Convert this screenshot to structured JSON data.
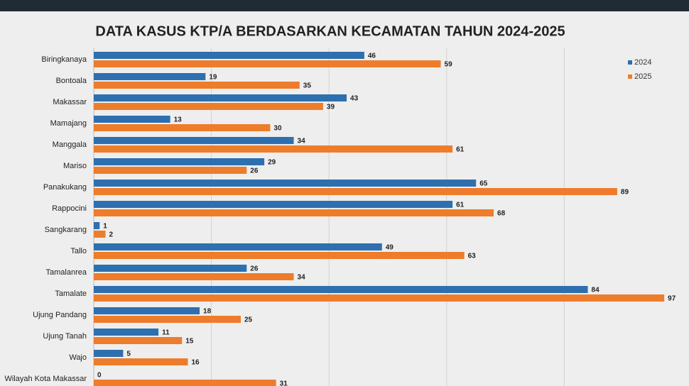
{
  "chart_data": {
    "type": "hbar",
    "title": "DATA KASUS KTP/A BERDASARKAN KECAMATAN TAHUN 2024-2025",
    "categories": [
      "Biringkanaya",
      "Bontoala",
      "Makassar",
      "Mamajang",
      "Manggala",
      "Mariso",
      "Panakukang",
      "Rappocini",
      "Sangkarang",
      "Tallo",
      "Tamalanrea",
      "Tamalate",
      "Ujung Pandang",
      "Ujung Tanah",
      "Wajo",
      "Wilayah Kota Makassar"
    ],
    "series": [
      {
        "name": "2024",
        "color": "#2e6fb0",
        "values": [
          46,
          19,
          43,
          13,
          34,
          29,
          65,
          61,
          1,
          49,
          26,
          84,
          18,
          11,
          5,
          0
        ]
      },
      {
        "name": "2025",
        "color": "#ee7d2b",
        "values": [
          59,
          35,
          39,
          30,
          61,
          26,
          89,
          68,
          2,
          63,
          34,
          97,
          25,
          15,
          16,
          31
        ]
      }
    ],
    "xlim": [
      0,
      100
    ],
    "grid": true,
    "legend": "top-right"
  }
}
